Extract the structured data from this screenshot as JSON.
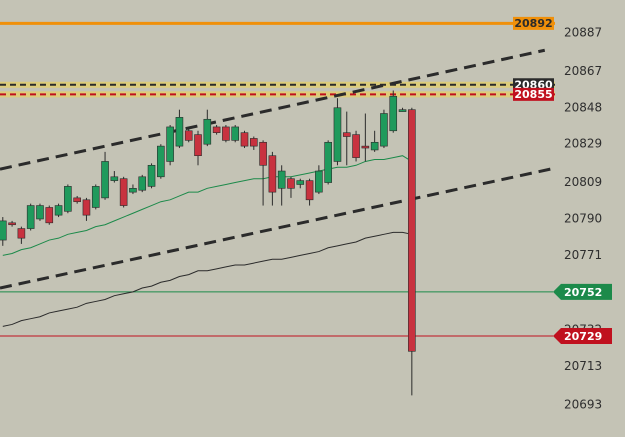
{
  "chart_data": {
    "type": "candlestick",
    "xlim": [
      0,
      59.7
    ],
    "ylim": [
      20676.3,
      20904.2
    ],
    "yticks": [
      20887,
      20867,
      20848,
      20829,
      20809,
      20790,
      20771,
      20752,
      20732,
      20713,
      20693
    ],
    "up_color": "#1f9a5c",
    "down_color": "#c8323f",
    "open": [
      20779,
      20788,
      20785,
      20785,
      20790,
      20796,
      20792,
      20794,
      20801,
      20800,
      20796,
      20801,
      20810,
      20811,
      20804,
      20805,
      20807,
      20812,
      20820,
      20828,
      20836,
      20834,
      20829,
      20838,
      20838,
      20831,
      20835,
      20832,
      20830,
      20823,
      20806,
      20811,
      20808,
      20810,
      20804,
      20809,
      20820,
      20835,
      20834,
      20828,
      20826,
      20828,
      20836,
      20846,
      20847
    ],
    "high": [
      20791,
      20789,
      20786,
      20798,
      20798,
      20797,
      20798,
      20808,
      20802,
      20801,
      20808,
      20825,
      20815,
      20812,
      20808,
      20813,
      20819,
      20829,
      20839,
      20847,
      20838,
      20836,
      20847,
      20839,
      20839,
      20839,
      20836,
      20833,
      20831,
      20825,
      20818,
      20812,
      20811,
      20811,
      20818,
      20831,
      20853,
      20846,
      20836,
      20845,
      20836,
      20847,
      20857,
      20848,
      20848
    ],
    "low": [
      20776,
      20786,
      20777,
      20784,
      20789,
      20787,
      20791,
      20793,
      20798,
      20789,
      20795,
      20800,
      20809,
      20796,
      20803,
      20804,
      20806,
      20811,
      20818,
      20827,
      20830,
      20818,
      20828,
      20834,
      20830,
      20830,
      20827,
      20826,
      20797,
      20797,
      20797,
      20801,
      20806,
      20797,
      20803,
      20808,
      20818,
      20818,
      20820,
      20820,
      20825,
      20827,
      20835,
      20846,
      20698
    ],
    "close": [
      20789,
      20787,
      20780,
      20797,
      20797,
      20788,
      20797,
      20807,
      20799,
      20792,
      20807,
      20820,
      20812,
      20797,
      20806,
      20812,
      20818,
      20828,
      20838,
      20843,
      20831,
      20823,
      20842,
      20835,
      20831,
      20838,
      20828,
      20828,
      20818,
      20804,
      20815,
      20806,
      20810,
      20800,
      20815,
      20830,
      20848,
      20833,
      20822,
      20827,
      20830,
      20845,
      20854,
      20847,
      20721
    ],
    "moving_averages": [
      {
        "color": "#1c8a4a",
        "values": [
          20771,
          20772,
          20774,
          20775,
          20777,
          20779,
          20780,
          20782,
          20783,
          20784,
          20786,
          20787,
          20789,
          20791,
          20793,
          20795,
          20797,
          20799,
          20800,
          20802,
          20804,
          20804,
          20806,
          20807,
          20808,
          20809,
          20810,
          20811,
          20811,
          20812,
          20812,
          20812,
          20813,
          20814,
          20815,
          20816,
          20817,
          20817,
          20818,
          20820,
          20821,
          20821,
          20822,
          20823,
          20820
        ]
      },
      {
        "color": "#2b2b2b",
        "values": [
          20734,
          20735,
          20737,
          20738,
          20739,
          20741,
          20742,
          20743,
          20744,
          20746,
          20747,
          20748,
          20750,
          20751,
          20752,
          20754,
          20755,
          20757,
          20758,
          20760,
          20761,
          20763,
          20763,
          20764,
          20765,
          20766,
          20766,
          20767,
          20768,
          20769,
          20769,
          20770,
          20771,
          20772,
          20773,
          20775,
          20776,
          20777,
          20778,
          20780,
          20781,
          20782,
          20783,
          20783,
          20782
        ]
      }
    ],
    "trendlines": [
      {
        "color": "#2b2b2b",
        "x": [
          0,
          58.6
        ],
        "values": [
          20816,
          20878
        ]
      },
      {
        "color": "#2b2b2b",
        "x": [
          0,
          59.2
        ],
        "values": [
          20754,
          20816
        ]
      }
    ],
    "levels": [
      {
        "value": 20892,
        "color": "#f0900a",
        "text_color": "#2b2b2b",
        "style": "solid",
        "tag": "box"
      },
      {
        "value": 20860,
        "color": "#2b2b2b",
        "text_color": "#ffffff",
        "style": "dashed",
        "tag": "box"
      },
      {
        "value": 20855,
        "color": "#c0101e",
        "text_color": "#ffffff",
        "style": "dashed",
        "tag": "box"
      },
      {
        "value": 20752,
        "color": "#1c8a4a",
        "text_color": "#ffffff",
        "style": "solid",
        "tag": "arrow"
      },
      {
        "value": 20729,
        "color": "#c0101e",
        "text_color": "#ffffff",
        "style": "solid",
        "tag": "arrow"
      }
    ]
  }
}
